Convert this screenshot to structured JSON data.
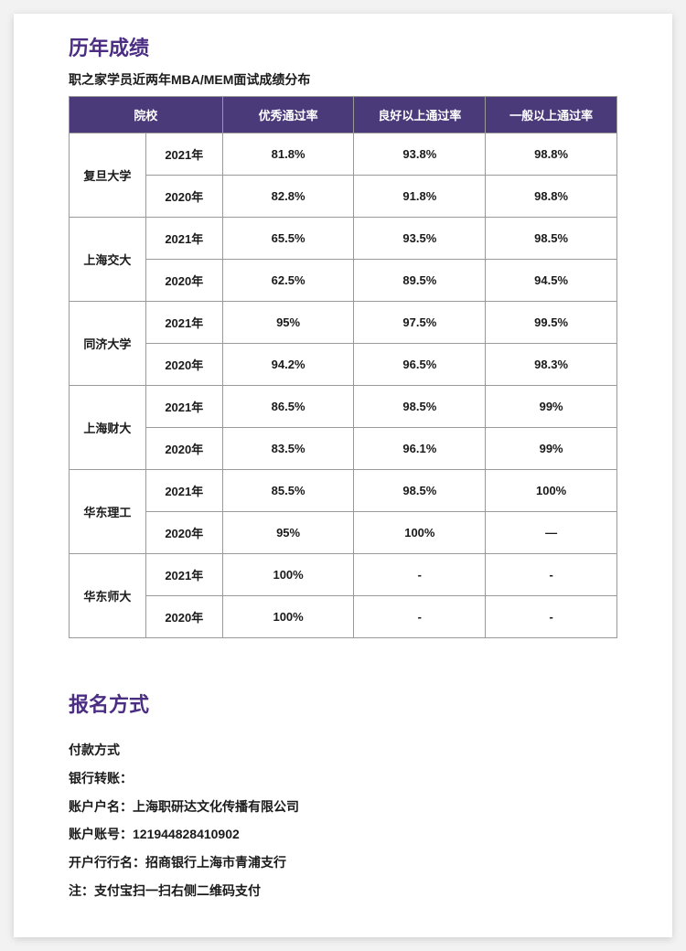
{
  "section1": {
    "title": "历年成绩",
    "subtitle": "职之家学员近两年MBA/MEM面试成绩分布",
    "header": {
      "school": "院校",
      "excellent": "优秀通过率",
      "good": "良好以上通过率",
      "general": "一般以上通过率"
    },
    "schools": [
      {
        "name": "复旦大学",
        "rows": [
          {
            "year": "2021年",
            "excellent": "81.8%",
            "good": "93.8%",
            "general": "98.8%"
          },
          {
            "year": "2020年",
            "excellent": "82.8%",
            "good": "91.8%",
            "general": "98.8%"
          }
        ]
      },
      {
        "name": "上海交大",
        "rows": [
          {
            "year": "2021年",
            "excellent": "65.5%",
            "good": "93.5%",
            "general": "98.5%"
          },
          {
            "year": "2020年",
            "excellent": "62.5%",
            "good": "89.5%",
            "general": "94.5%"
          }
        ]
      },
      {
        "name": "同济大学",
        "rows": [
          {
            "year": "2021年",
            "excellent": "95%",
            "good": "97.5%",
            "general": "99.5%"
          },
          {
            "year": "2020年",
            "excellent": "94.2%",
            "good": "96.5%",
            "general": "98.3%"
          }
        ]
      },
      {
        "name": "上海财大",
        "rows": [
          {
            "year": "2021年",
            "excellent": "86.5%",
            "good": "98.5%",
            "general": "99%"
          },
          {
            "year": "2020年",
            "excellent": "83.5%",
            "good": "96.1%",
            "general": "99%"
          }
        ]
      },
      {
        "name": "华东理工",
        "rows": [
          {
            "year": "2021年",
            "excellent": "85.5%",
            "good": "98.5%",
            "general": "100%"
          },
          {
            "year": "2020年",
            "excellent": "95%",
            "good": "100%",
            "general": "—"
          }
        ]
      },
      {
        "name": "华东师大",
        "rows": [
          {
            "year": "2021年",
            "excellent": "100%",
            "good": "-",
            "general": "-"
          },
          {
            "year": "2020年",
            "excellent": "100%",
            "good": "-",
            "general": "-"
          }
        ]
      }
    ]
  },
  "section2": {
    "title": "报名方式",
    "lines": {
      "l1": "付款方式",
      "l2": "银行转账：",
      "l3": "账户户名：上海职研达文化传播有限公司",
      "l4": "账户账号：121944828410902",
      "l5": "开户行行名：招商银行上海市青浦支行",
      "l6": "注：支付宝扫一扫右侧二维码支付"
    }
  },
  "style": {
    "accent_color": "#4b2d82",
    "header_bg": "#4b3a7a",
    "header_text": "#ffffff",
    "border_color": "#9a9a9a",
    "body_text": "#1a1a1a",
    "page_bg": "#ffffff",
    "outer_bg": "#f2f2f2",
    "title_fontsize": 22,
    "subtitle_fontsize": 14,
    "cell_fontsize": 13,
    "info_fontsize": 14
  }
}
